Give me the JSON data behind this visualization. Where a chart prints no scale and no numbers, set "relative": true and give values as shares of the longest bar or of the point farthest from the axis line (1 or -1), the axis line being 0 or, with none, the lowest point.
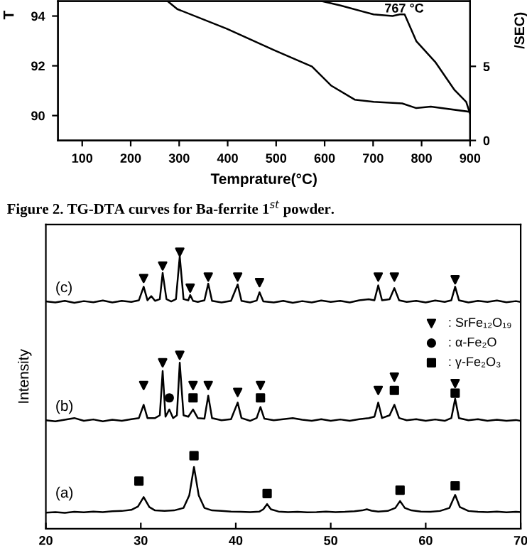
{
  "chart_data": [
    {
      "type": "line",
      "xlabel": "Temprature(°C)",
      "ylabel": "T",
      "y2label": "/SEC)",
      "xlim": [
        50,
        900
      ],
      "xticks": [
        100,
        200,
        300,
        400,
        500,
        600,
        700,
        800,
        900
      ],
      "ylim": [
        89,
        94.6
      ],
      "yticks": [
        90,
        92,
        94
      ],
      "y2lim": [
        0,
        9.4
      ],
      "y2ticks": [
        0,
        5
      ],
      "series": [
        {
          "color": "#000000",
          "x": [
            276,
            296,
            398,
            496,
            574,
            613,
            662,
            701,
            760,
            789,
            819,
            900
          ],
          "values": [
            94.6,
            94.28,
            93.49,
            92.63,
            91.97,
            91.21,
            90.64,
            90.55,
            90.49,
            90.3,
            90.36,
            90.15
          ]
        },
        {
          "color": "#000000",
          "axis": "y2",
          "x": [
            594,
            633,
            701,
            740,
            755,
            765,
            789,
            828,
            868,
            892,
            900
          ],
          "values": [
            9.4,
            9.1,
            8.5,
            8.4,
            8.5,
            8.5,
            6.7,
            5.3,
            3.4,
            2.6,
            1.8
          ]
        }
      ],
      "annotations": [
        "Figure 2. TG-DTA curves for Ba-ferrite 1$^{st}$ powder.",
        "767 °C"
      ]
    },
    {
      "type": "line",
      "relative": true,
      "ylabel": "Intensity",
      "xlim": [
        20,
        70
      ],
      "xticks": [
        20,
        30,
        40,
        50,
        60,
        70
      ],
      "tick_labels": "x",
      "legend": "right",
      "series": [
        {
          "color": "#000000",
          "x": [
            20,
            21,
            22,
            23,
            24,
            25,
            26,
            27,
            28,
            29,
            29.8,
            30.3,
            30.7,
            31.1,
            31.5,
            32.0,
            32.3,
            32.7,
            33.2,
            33.7,
            34.1,
            34.5,
            35.0,
            35.2,
            35.5,
            36.0,
            36.7,
            37.1,
            37.5,
            38.5,
            39.5,
            40.2,
            40.6,
            41.5,
            42.2,
            42.5,
            42.9,
            44,
            45,
            46,
            47,
            48,
            49,
            50,
            51,
            52,
            53,
            54,
            54.6,
            55.0,
            55.4,
            56.2,
            56.7,
            57.2,
            58,
            59,
            60,
            61,
            62,
            62.7,
            63.1,
            63.5,
            64.5,
            65.5,
            66.5,
            67.5,
            68.5,
            69.5,
            70
          ],
          "values": [
            0.822,
            0.818,
            0.824,
            0.817,
            0.823,
            0.819,
            0.825,
            0.818,
            0.824,
            0.82,
            0.826,
            0.875,
            0.826,
            0.841,
            0.824,
            0.83,
            0.925,
            0.83,
            0.822,
            0.83,
            0.985,
            0.83,
            0.826,
            0.845,
            0.824,
            0.82,
            0.826,
            0.886,
            0.824,
            0.818,
            0.824,
            0.883,
            0.824,
            0.818,
            0.825,
            0.855,
            0.822,
            0.818,
            0.824,
            0.817,
            0.823,
            0.818,
            0.825,
            0.82,
            0.824,
            0.818,
            0.826,
            0.83,
            0.826,
            0.88,
            0.826,
            0.83,
            0.87,
            0.826,
            0.82,
            0.824,
            0.818,
            0.825,
            0.82,
            0.826,
            0.875,
            0.826,
            0.818,
            0.824,
            0.82,
            0.825,
            0.819,
            0.823,
            0.82
          ]
        },
        {
          "color": "#000000",
          "x": [
            20,
            21,
            22,
            23,
            24,
            25,
            26,
            27,
            28,
            29,
            29.8,
            30.3,
            30.7,
            31.5,
            32.0,
            32.3,
            32.6,
            33.0,
            33.4,
            33.8,
            34.1,
            34.5,
            35.0,
            35.5,
            36.0,
            36.7,
            37.1,
            37.5,
            38.5,
            39.5,
            40.2,
            40.6,
            41.5,
            42.2,
            42.6,
            43.0,
            44,
            45,
            46,
            47,
            48,
            49,
            50,
            51,
            52,
            53,
            54,
            54.6,
            55.0,
            55.4,
            56.2,
            56.7,
            57.2,
            58,
            59,
            60,
            61,
            62,
            62.7,
            63.1,
            63.5,
            64.5,
            65.5,
            66.5,
            67.5,
            68.5,
            69.5,
            70
          ],
          "values": [
            0.392,
            0.388,
            0.394,
            0.4,
            0.39,
            0.395,
            0.388,
            0.394,
            0.39,
            0.396,
            0.4,
            0.448,
            0.4,
            0.4,
            0.41,
            0.57,
            0.405,
            0.431,
            0.4,
            0.41,
            0.6,
            0.41,
            0.405,
            0.431,
            0.4,
            0.398,
            0.481,
            0.4,
            0.392,
            0.396,
            0.456,
            0.4,
            0.39,
            0.4,
            0.44,
            0.398,
            0.392,
            0.396,
            0.4,
            0.394,
            0.39,
            0.396,
            0.39,
            0.395,
            0.39,
            0.396,
            0.4,
            0.405,
            0.456,
            0.4,
            0.41,
            0.448,
            0.4,
            0.392,
            0.396,
            0.39,
            0.395,
            0.39,
            0.4,
            0.47,
            0.4,
            0.392,
            0.396,
            0.39,
            0.394,
            0.39,
            0.393,
            0.39
          ]
        },
        {
          "color": "#000000",
          "x": [
            20,
            21,
            22,
            23,
            24,
            25,
            26,
            27,
            28,
            29,
            29.7,
            30.3,
            30.9,
            31.5,
            32.5,
            33.5,
            34.5,
            35.1,
            35.6,
            36.1,
            36.7,
            37.5,
            38.5,
            39.5,
            40.5,
            41.5,
            42.5,
            42.9,
            43.3,
            43.7,
            44.5,
            45.5,
            46.5,
            47.5,
            48.5,
            49.5,
            50.5,
            51.5,
            52.5,
            53.3,
            53.8,
            54.3,
            55,
            56,
            56.8,
            57.3,
            57.8,
            58.5,
            59.5,
            60.5,
            61.5,
            62.5,
            63.1,
            63.6,
            64.5,
            65.5,
            66.5,
            67.5,
            68.5,
            69.5,
            70
          ],
          "values": [
            0.058,
            0.06,
            0.057,
            0.061,
            0.059,
            0.062,
            0.06,
            0.063,
            0.064,
            0.068,
            0.08,
            0.114,
            0.078,
            0.066,
            0.064,
            0.066,
            0.075,
            0.12,
            0.223,
            0.12,
            0.075,
            0.066,
            0.064,
            0.062,
            0.061,
            0.06,
            0.062,
            0.07,
            0.089,
            0.07,
            0.062,
            0.06,
            0.061,
            0.059,
            0.06,
            0.062,
            0.06,
            0.061,
            0.063,
            0.066,
            0.07,
            0.065,
            0.062,
            0.064,
            0.075,
            0.1,
            0.075,
            0.066,
            0.062,
            0.061,
            0.064,
            0.075,
            0.122,
            0.078,
            0.064,
            0.061,
            0.06,
            0.062,
            0.059,
            0.061,
            0.06
          ]
        },
        {
          "type": "scatter",
          "name": ": SrFe₁₂O₁₉",
          "marker": "triangle",
          "color": "#000000",
          "x": [
            30.3,
            32.3,
            34.1,
            35.2,
            37.1,
            40.2,
            42.5,
            55.0,
            56.7,
            63.1,
            30.3,
            32.3,
            34.1,
            35.5,
            37.1,
            40.2,
            42.6,
            55.0,
            56.7,
            63.1
          ],
          "values": [
            0.905,
            0.95,
            1.0,
            0.87,
            0.91,
            0.91,
            0.89,
            0.91,
            0.91,
            0.9,
            0.518,
            0.6,
            0.627,
            0.518,
            0.518,
            0.493,
            0.518,
            0.5,
            0.548,
            0.525
          ]
        },
        {
          "type": "scatter",
          "name": ": α-Fe₂O",
          "marker": "circle",
          "color": "#000000",
          "x": [
            33.0
          ],
          "values": [
            0.473
          ]
        },
        {
          "type": "scatter",
          "name": ": γ-Fe₂O₃",
          "marker": "square",
          "color": "#000000",
          "x": [
            35.5,
            42.6,
            56.7,
            63.1,
            29.8,
            35.6,
            43.3,
            57.3,
            63.1
          ],
          "values": [
            0.473,
            0.473,
            0.5,
            0.49,
            0.172,
            0.264,
            0.127,
            0.139,
            0.155
          ]
        }
      ],
      "annotations": [
        "(c)",
        "(b)",
        "(a)"
      ]
    }
  ]
}
